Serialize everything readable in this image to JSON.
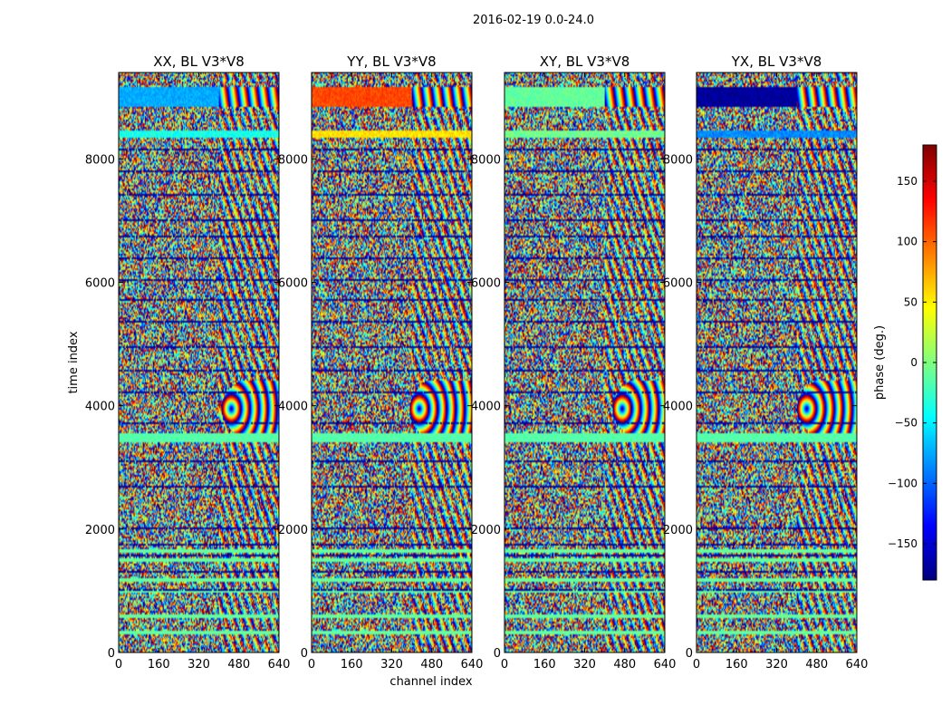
{
  "chart_data": {
    "type": "heatmap",
    "suptitle": "2016-02-19 0.0-24.0",
    "xlabel": "channel index",
    "ylabel": "time index",
    "xlim": [
      0,
      640
    ],
    "ylim": [
      0,
      9400
    ],
    "x_ticks": [
      0,
      160,
      320,
      480,
      640
    ],
    "y_ticks": [
      0,
      2000,
      4000,
      6000,
      8000
    ],
    "panels": [
      {
        "title": "XX, BL V3*V8",
        "band_top_phase": -75,
        "band_top_alt_phase": 35,
        "fringe_center_channel": 450
      },
      {
        "title": "YY, BL V3*V8",
        "band_top_phase": 110,
        "band_top_alt_phase": -10,
        "fringe_center_channel": 430
      },
      {
        "title": "XY, BL V3*V8",
        "band_top_phase": -10,
        "band_top_alt_phase": 20,
        "fringe_center_channel": 470
      },
      {
        "title": "YX, BL V3*V8",
        "band_top_phase": -170,
        "band_top_alt_phase": 0,
        "fringe_center_channel": 440
      }
    ],
    "features": {
      "flag_gap_time": [
        8450,
        8850
      ],
      "calibration_band_time": [
        8850,
        9250
      ],
      "flat_band_time": [
        3400,
        3550
      ],
      "fringe_time_center": 3950,
      "flat_rows_time": [
        320,
        580,
        1000,
        1180,
        1500,
        1650
      ],
      "dark_rows_time": [
        1000,
        1300,
        1560,
        1760,
        2020,
        2350,
        2700,
        3100,
        3720,
        4210,
        4580,
        4950,
        5350,
        5700,
        6050,
        6400,
        6750,
        7000,
        7420,
        7800,
        8150
      ]
    },
    "colorbar": {
      "label": "phase (deg.)",
      "min": -180,
      "max": 180,
      "ticks": [
        150,
        100,
        50,
        0,
        -50,
        -100,
        -150
      ],
      "tick_labels": [
        "150",
        "100",
        "50",
        "0",
        "−50",
        "−100",
        "−150"
      ],
      "colormap": "jet"
    }
  }
}
